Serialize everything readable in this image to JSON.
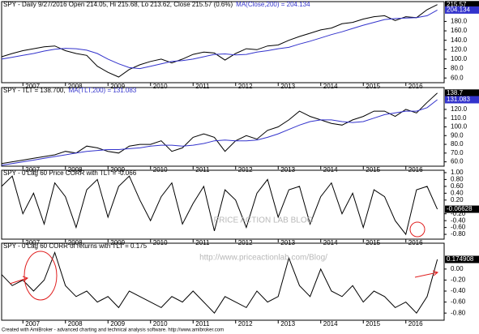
{
  "chart_data": [
    {
      "type": "line",
      "title": "SPY - Daily 9/27/2016 Open 214.05, Hi 215.68, Lo 213.62, Close 215.57 (0.6%)",
      "x": [
        2006.5,
        2006.75,
        2007,
        2007.25,
        2007.5,
        2007.75,
        2008,
        2008.25,
        2008.5,
        2008.75,
        2009,
        2009.25,
        2009.5,
        2009.75,
        2010,
        2010.25,
        2010.5,
        2010.75,
        2011,
        2011.25,
        2011.5,
        2011.75,
        2012,
        2012.25,
        2012.5,
        2012.75,
        2013,
        2013.25,
        2013.5,
        2013.75,
        2014,
        2014.25,
        2014.5,
        2014.75,
        2015,
        2015.25,
        2015.5,
        2015.75,
        2016,
        2016.25,
        2016.5,
        2016.74
      ],
      "series": [
        {
          "color": "#000000",
          "values": [
            105,
            112,
            118,
            122,
            126,
            128,
            118,
            112,
            108,
            85,
            72,
            62,
            78,
            88,
            95,
            100,
            92,
            100,
            110,
            115,
            113,
            98,
            112,
            122,
            120,
            128,
            130,
            140,
            148,
            155,
            162,
            166,
            175,
            178,
            185,
            190,
            192,
            182,
            190,
            188,
            205,
            215.57
          ]
        },
        {
          "name": "MA(Close,200) = 204.134",
          "color": "#3333cc",
          "values": [
            100,
            104,
            108,
            112,
            117,
            121,
            123,
            122,
            119,
            112,
            100,
            90,
            82,
            80,
            85,
            90,
            95,
            97,
            100,
            105,
            110,
            111,
            109,
            110,
            115,
            118,
            122,
            125,
            132,
            138,
            145,
            152,
            158,
            165,
            172,
            178,
            184,
            186,
            187,
            188,
            192,
            204.134
          ]
        }
      ],
      "xlim": [
        2006.5,
        2016.9
      ],
      "xticks": [
        2007,
        2008,
        2009,
        2010,
        2011,
        2012,
        2013,
        2014,
        2015,
        2016
      ],
      "ylim": [
        50,
        222
      ],
      "yticks": [
        {
          "value": 180,
          "label": "180.0"
        },
        {
          "value": 160,
          "label": "160.0"
        },
        {
          "value": 140,
          "label": "140.0"
        },
        {
          "value": 120,
          "label": "120.0"
        },
        {
          "value": 100,
          "label": "100.0"
        },
        {
          "value": 80,
          "label": "80.0"
        },
        {
          "value": 60,
          "label": "60.0"
        }
      ]
    },
    {
      "type": "line",
      "title": "SPY - TLT = 138.700,",
      "x": [
        2006.5,
        2006.75,
        2007,
        2007.25,
        2007.5,
        2007.75,
        2008,
        2008.25,
        2008.5,
        2008.75,
        2009,
        2009.25,
        2009.5,
        2009.75,
        2010,
        2010.25,
        2010.5,
        2010.75,
        2011,
        2011.25,
        2011.5,
        2011.75,
        2012,
        2012.25,
        2012.5,
        2012.75,
        2013,
        2013.25,
        2013.5,
        2013.75,
        2014,
        2014.25,
        2014.5,
        2014.75,
        2015,
        2015.25,
        2015.5,
        2015.75,
        2016,
        2016.25,
        2016.5,
        2016.74
      ],
      "series": [
        {
          "color": "#000000",
          "values": [
            58,
            60,
            62,
            64,
            66,
            68,
            72,
            70,
            78,
            76,
            72,
            70,
            78,
            80,
            80,
            84,
            72,
            76,
            88,
            92,
            88,
            72,
            84,
            90,
            86,
            96,
            100,
            108,
            118,
            112,
            108,
            104,
            102,
            108,
            112,
            118,
            118,
            112,
            120,
            116,
            128,
            138.7
          ]
        },
        {
          "name": "MA(TLT,200) = 131.083",
          "color": "#3333cc",
          "values": [
            56,
            58,
            60,
            62,
            64,
            66,
            68,
            70,
            72,
            73,
            74,
            74,
            75,
            76,
            78,
            79,
            79,
            78,
            79,
            81,
            84,
            85,
            84,
            84,
            85,
            88,
            92,
            97,
            102,
            106,
            108,
            108,
            106,
            105,
            106,
            110,
            114,
            116,
            118,
            118,
            122,
            131.083
          ]
        }
      ],
      "xlim": [
        2006.5,
        2016.9
      ],
      "xticks": [
        2007,
        2008,
        2009,
        2010,
        2011,
        2012,
        2013,
        2014,
        2015,
        2016
      ],
      "ylim": [
        55,
        145
      ],
      "yticks": [
        {
          "value": 120,
          "label": "120.0"
        },
        {
          "value": 110,
          "label": "110.0"
        },
        {
          "value": 100,
          "label": "100.0"
        },
        {
          "value": 90,
          "label": "90.0"
        },
        {
          "value": 80,
          "label": "80.0"
        },
        {
          "value": 70,
          "label": "70.0"
        },
        {
          "value": 60,
          "label": "60.0"
        }
      ]
    },
    {
      "type": "line",
      "title": "SPY - 0 Lag 60 Price CORR with TLT = -0.066",
      "annotation": "PRICE ACTION LAB BLOG",
      "x": [
        2006.5,
        2006.75,
        2007,
        2007.25,
        2007.5,
        2007.75,
        2008,
        2008.25,
        2008.5,
        2008.75,
        2009,
        2009.25,
        2009.5,
        2009.75,
        2010,
        2010.25,
        2010.5,
        2010.75,
        2011,
        2011.25,
        2011.5,
        2011.75,
        2012,
        2012.25,
        2012.5,
        2012.75,
        2013,
        2013.25,
        2013.5,
        2013.75,
        2014,
        2014.25,
        2014.5,
        2014.75,
        2015,
        2015.25,
        2015.5,
        2015.75,
        2016,
        2016.25,
        2016.5,
        2016.74
      ],
      "series": [
        {
          "color": "#000000",
          "values": [
            0.6,
            0.9,
            -0.2,
            0.4,
            -0.5,
            0.7,
            0.3,
            -0.6,
            0.5,
            0.8,
            -0.3,
            0.6,
            0.9,
            0.2,
            -0.4,
            0.3,
            0.7,
            -0.5,
            0.1,
            0.6,
            -0.7,
            0.5,
            0.2,
            -0.6,
            0.4,
            0.8,
            -0.3,
            0.5,
            0.6,
            -0.5,
            0.3,
            0.7,
            -0.2,
            0.4,
            -0.6,
            0.5,
            0.3,
            -0.4,
            -0.8,
            0.5,
            0.6,
            -0.06628
          ]
        }
      ],
      "xlim": [
        2006.5,
        2016.9
      ],
      "xticks": [
        2007,
        2008,
        2009,
        2010,
        2011,
        2012,
        2013,
        2014,
        2015,
        2016
      ],
      "ylim": [
        -0.94,
        1.07
      ],
      "yticks": [
        {
          "value": 1,
          "label": "1.00"
        },
        {
          "value": 0.8,
          "label": "0.80"
        },
        {
          "value": 0.6,
          "label": "0.60"
        },
        {
          "value": 0.4,
          "label": "0.40"
        },
        {
          "value": 0.2,
          "label": "0.20"
        },
        {
          "value": -0.2,
          "label": "-0.20"
        },
        {
          "value": -0.4,
          "label": "-0.40"
        },
        {
          "value": -0.6,
          "label": "-0.60"
        },
        {
          "value": -0.8,
          "label": "-0.80"
        }
      ]
    },
    {
      "type": "line",
      "title": "SPY - 0 Lag 60 CORR of returns with TLT = 0.175",
      "annotation": "http://www.priceactionlab.com/Blog/",
      "x": [
        2006.5,
        2006.75,
        2007,
        2007.25,
        2007.5,
        2007.75,
        2008,
        2008.25,
        2008.5,
        2008.75,
        2009,
        2009.25,
        2009.5,
        2009.75,
        2010,
        2010.25,
        2010.5,
        2010.75,
        2011,
        2011.25,
        2011.5,
        2011.75,
        2012,
        2012.25,
        2012.5,
        2012.75,
        2013,
        2013.25,
        2013.5,
        2013.75,
        2014,
        2014.25,
        2014.5,
        2014.75,
        2015,
        2015.25,
        2015.5,
        2015.75,
        2016,
        2016.25,
        2016.5,
        2016.74
      ],
      "series": [
        {
          "color": "#000000",
          "values": [
            -0.1,
            -0.3,
            -0.2,
            -0.4,
            -0.2,
            0.3,
            -0.3,
            -0.5,
            -0.4,
            -0.6,
            -0.5,
            -0.7,
            -0.4,
            -0.5,
            -0.6,
            -0.7,
            -0.5,
            -0.6,
            -0.4,
            -0.6,
            -0.8,
            -0.5,
            -0.6,
            -0.7,
            -0.4,
            -0.6,
            -0.5,
            0.2,
            -0.3,
            -0.5,
            0,
            -0.4,
            -0.5,
            -0.3,
            -0.6,
            -0.4,
            -0.5,
            -0.7,
            -0.6,
            -0.8,
            -0.5,
            0.174908
          ]
        }
      ],
      "xlim": [
        2006.5,
        2016.9
      ],
      "xticks": [
        2007,
        2008,
        2009,
        2010,
        2011,
        2012,
        2013,
        2014,
        2015,
        2016
      ],
      "ylim": [
        -0.93,
        0.47
      ],
      "yticks": [
        {
          "value": 0,
          "label": "0.00"
        },
        {
          "value": -0.2,
          "label": "-0.20"
        },
        {
          "value": -0.4,
          "label": "-0.40"
        },
        {
          "value": -0.6,
          "label": "-0.60"
        },
        {
          "value": -0.8,
          "label": "-0.80"
        }
      ]
    }
  ],
  "footer": "Created with AmiBroker - advanced charting and technical analysis software. http://www.amibroker.com"
}
